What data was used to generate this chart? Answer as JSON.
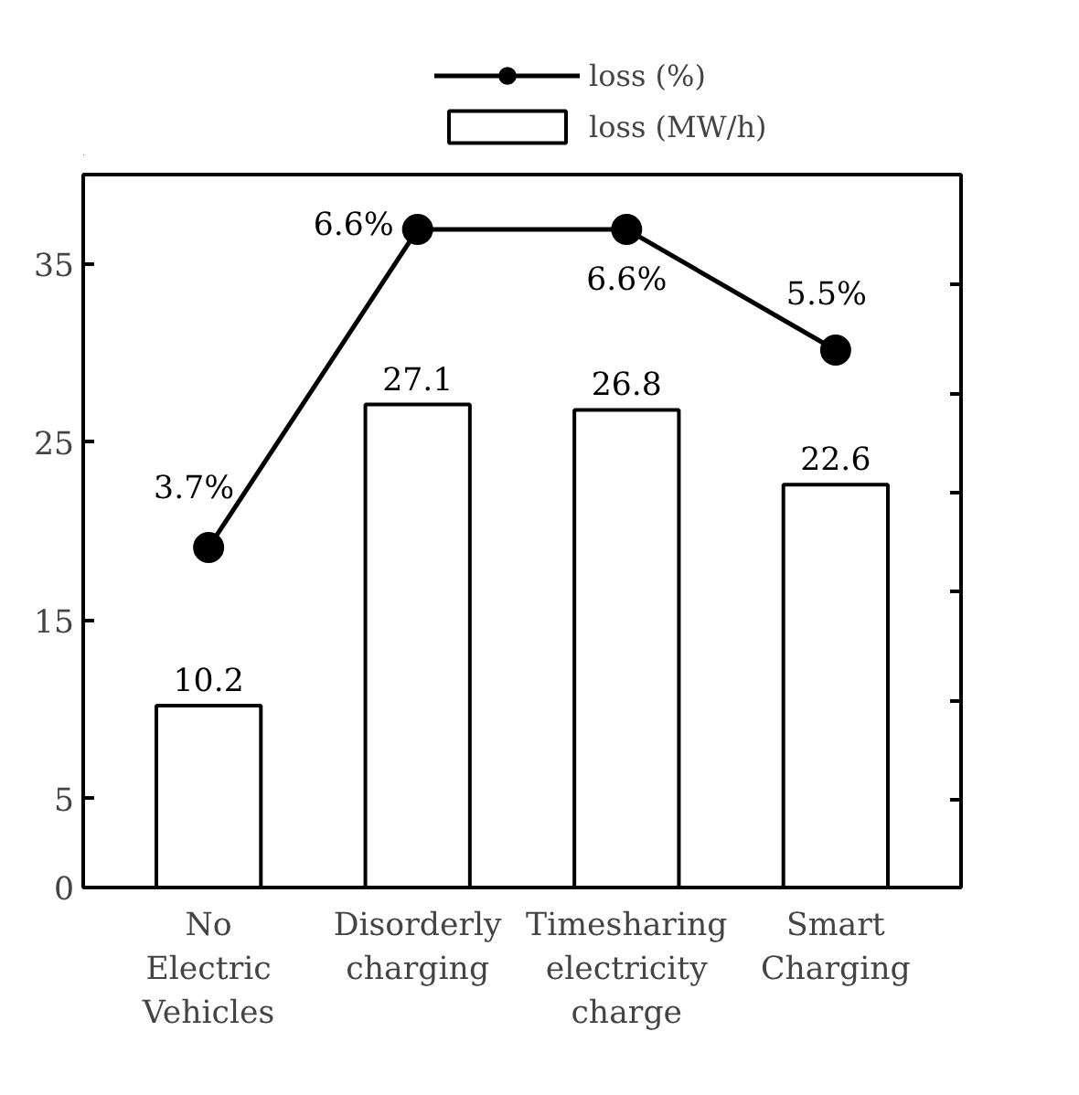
{
  "chart_data": {
    "type": "bar",
    "categories": [
      "No\nElectric\nVehicles",
      "Disorderly\ncharging",
      "Timesharing\nelectricity\ncharge",
      "Smart\nCharging"
    ],
    "series": [
      {
        "name": "loss (%)",
        "type": "line",
        "axis": "y2",
        "color": "#000000",
        "values": [
          3.7,
          6.6,
          6.6,
          5.5
        ],
        "value_labels": [
          "3.7%",
          "6.6%",
          "6.6%",
          "5.5%"
        ]
      },
      {
        "name": "loss (MW/h)",
        "color": "#ffffff",
        "values": [
          10.2,
          27.1,
          26.8,
          22.6
        ],
        "value_labels": [
          "10.2",
          "27.1",
          "26.8",
          "22.6"
        ]
      }
    ],
    "ylim": [
      0,
      40
    ],
    "yticks": [
      0,
      5,
      15,
      25,
      35
    ],
    "y2lim": [
      0.6,
      7.1
    ],
    "y2ticks": [
      {
        "value": 1.4,
        "label": null
      },
      {
        "value": 2.3,
        "label": null
      },
      {
        "value": 3.3,
        "label": null
      },
      {
        "value": 4.2,
        "label": null
      },
      {
        "value": 5.1,
        "label": null
      },
      {
        "value": 6.1,
        "label": null
      }
    ],
    "marker": "circle",
    "line_style": "solid",
    "legend": "top",
    "grid": false
  }
}
